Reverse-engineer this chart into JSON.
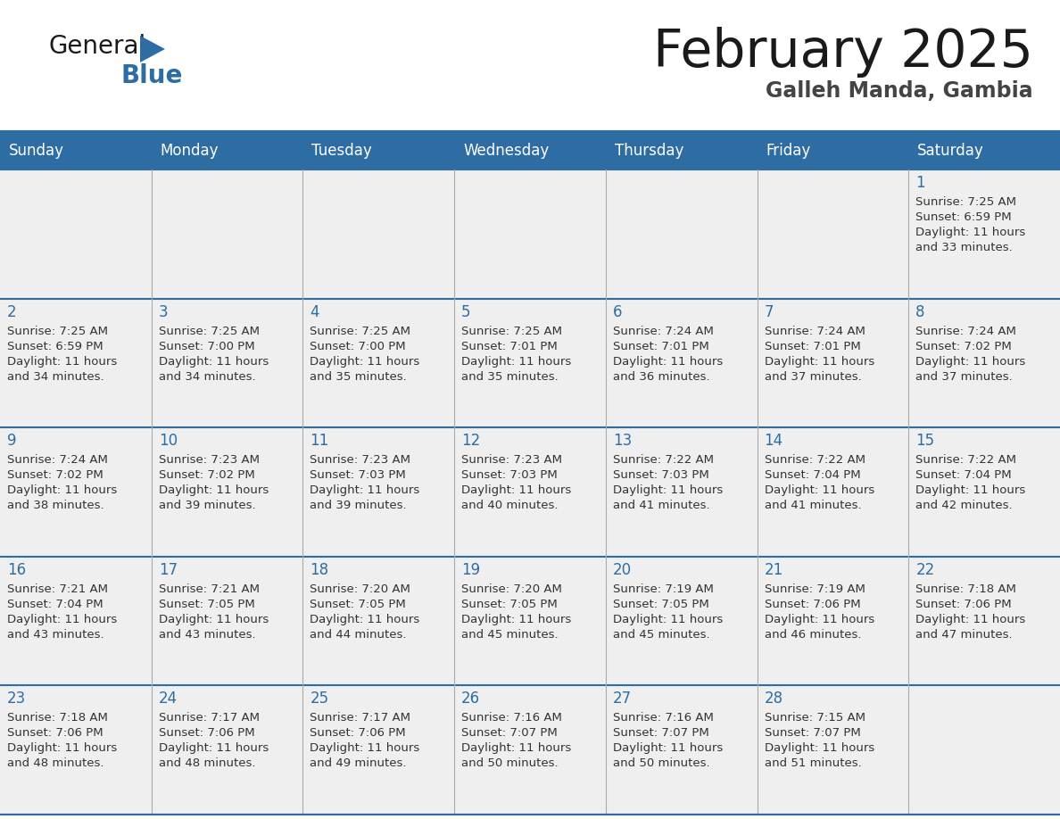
{
  "title": "February 2025",
  "subtitle": "Galleh Manda, Gambia",
  "header_bg_color": "#2E6DA4",
  "header_text_color": "#FFFFFF",
  "cell_bg_color": "#EFEFEF",
  "border_color": "#2E6DA4",
  "day_headers": [
    "Sunday",
    "Monday",
    "Tuesday",
    "Wednesday",
    "Thursday",
    "Friday",
    "Saturday"
  ],
  "title_color": "#1a1a1a",
  "subtitle_color": "#444444",
  "day_num_color": "#2E6DA4",
  "cell_text_color": "#333333",
  "logo_general_color": "#1a1a1a",
  "logo_blue_color": "#2E6DA4",
  "logo_triangle_color": "#2E6DA4",
  "calendar_data": [
    [
      null,
      null,
      null,
      null,
      null,
      null,
      1
    ],
    [
      2,
      3,
      4,
      5,
      6,
      7,
      8
    ],
    [
      9,
      10,
      11,
      12,
      13,
      14,
      15
    ],
    [
      16,
      17,
      18,
      19,
      20,
      21,
      22
    ],
    [
      23,
      24,
      25,
      26,
      27,
      28,
      null
    ]
  ],
  "sunrise_data": {
    "1": "7:25 AM",
    "2": "7:25 AM",
    "3": "7:25 AM",
    "4": "7:25 AM",
    "5": "7:25 AM",
    "6": "7:24 AM",
    "7": "7:24 AM",
    "8": "7:24 AM",
    "9": "7:24 AM",
    "10": "7:23 AM",
    "11": "7:23 AM",
    "12": "7:23 AM",
    "13": "7:22 AM",
    "14": "7:22 AM",
    "15": "7:22 AM",
    "16": "7:21 AM",
    "17": "7:21 AM",
    "18": "7:20 AM",
    "19": "7:20 AM",
    "20": "7:19 AM",
    "21": "7:19 AM",
    "22": "7:18 AM",
    "23": "7:18 AM",
    "24": "7:17 AM",
    "25": "7:17 AM",
    "26": "7:16 AM",
    "27": "7:16 AM",
    "28": "7:15 AM"
  },
  "sunset_data": {
    "1": "6:59 PM",
    "2": "6:59 PM",
    "3": "7:00 PM",
    "4": "7:00 PM",
    "5": "7:01 PM",
    "6": "7:01 PM",
    "7": "7:01 PM",
    "8": "7:02 PM",
    "9": "7:02 PM",
    "10": "7:02 PM",
    "11": "7:03 PM",
    "12": "7:03 PM",
    "13": "7:03 PM",
    "14": "7:04 PM",
    "15": "7:04 PM",
    "16": "7:04 PM",
    "17": "7:05 PM",
    "18": "7:05 PM",
    "19": "7:05 PM",
    "20": "7:05 PM",
    "21": "7:06 PM",
    "22": "7:06 PM",
    "23": "7:06 PM",
    "24": "7:06 PM",
    "25": "7:06 PM",
    "26": "7:07 PM",
    "27": "7:07 PM",
    "28": "7:07 PM"
  },
  "daylight_data": {
    "1": [
      "11 hours",
      "and 33 minutes."
    ],
    "2": [
      "11 hours",
      "and 34 minutes."
    ],
    "3": [
      "11 hours",
      "and 34 minutes."
    ],
    "4": [
      "11 hours",
      "and 35 minutes."
    ],
    "5": [
      "11 hours",
      "and 35 minutes."
    ],
    "6": [
      "11 hours",
      "and 36 minutes."
    ],
    "7": [
      "11 hours",
      "and 37 minutes."
    ],
    "8": [
      "11 hours",
      "and 37 minutes."
    ],
    "9": [
      "11 hours",
      "and 38 minutes."
    ],
    "10": [
      "11 hours",
      "and 39 minutes."
    ],
    "11": [
      "11 hours",
      "and 39 minutes."
    ],
    "12": [
      "11 hours",
      "and 40 minutes."
    ],
    "13": [
      "11 hours",
      "and 41 minutes."
    ],
    "14": [
      "11 hours",
      "and 41 minutes."
    ],
    "15": [
      "11 hours",
      "and 42 minutes."
    ],
    "16": [
      "11 hours",
      "and 43 minutes."
    ],
    "17": [
      "11 hours",
      "and 43 minutes."
    ],
    "18": [
      "11 hours",
      "and 44 minutes."
    ],
    "19": [
      "11 hours",
      "and 45 minutes."
    ],
    "20": [
      "11 hours",
      "and 45 minutes."
    ],
    "21": [
      "11 hours",
      "and 46 minutes."
    ],
    "22": [
      "11 hours",
      "and 47 minutes."
    ],
    "23": [
      "11 hours",
      "and 48 minutes."
    ],
    "24": [
      "11 hours",
      "and 48 minutes."
    ],
    "25": [
      "11 hours",
      "and 49 minutes."
    ],
    "26": [
      "11 hours",
      "and 50 minutes."
    ],
    "27": [
      "11 hours",
      "and 50 minutes."
    ],
    "28": [
      "11 hours",
      "and 51 minutes."
    ]
  }
}
